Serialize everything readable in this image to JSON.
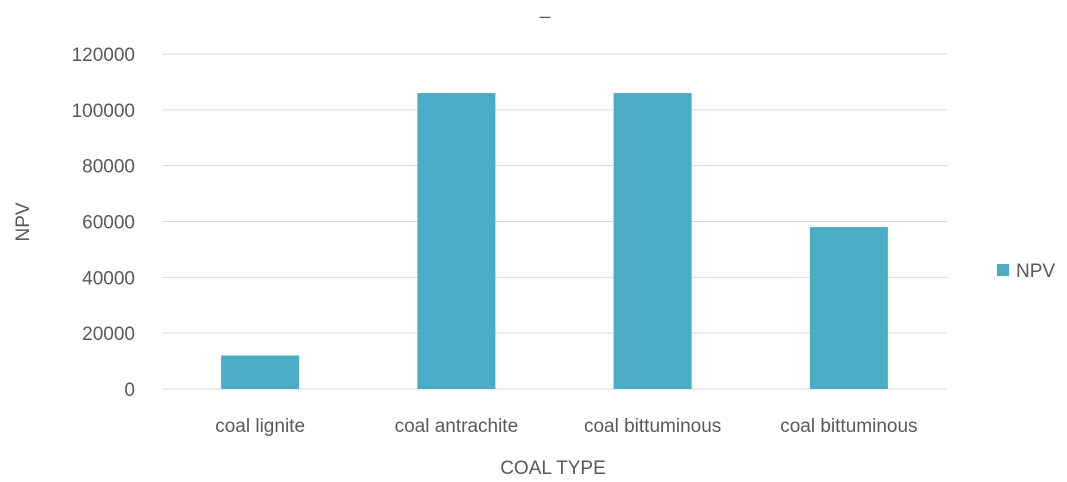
{
  "chart_data": {
    "type": "bar",
    "title": "_",
    "xlabel": "COAL TYPE",
    "ylabel": "NPV",
    "categories": [
      "coal lignite",
      "coal antrachite",
      "coal bittuminous",
      "coal bittuminous"
    ],
    "series": [
      {
        "name": "NPV",
        "values": [
          12000,
          106000,
          106000,
          58000
        ],
        "color": "#4BACC6"
      }
    ],
    "ylim": [
      0,
      120000
    ],
    "yticks": [
      "0",
      "20000",
      "40000",
      "60000",
      "80000",
      "100000",
      "120000"
    ],
    "grid": true,
    "gridline_color": "#D9D9D9",
    "legend_position": "right"
  }
}
